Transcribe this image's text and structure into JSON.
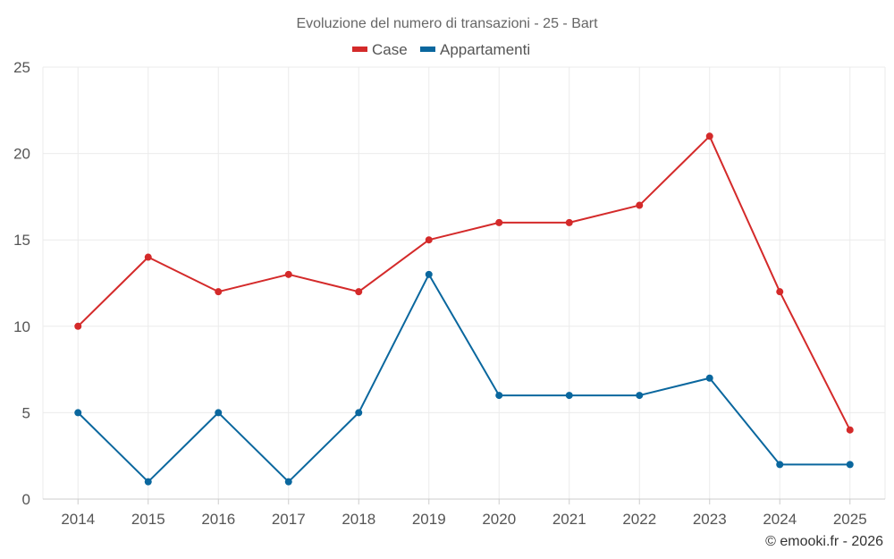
{
  "chart_data": {
    "type": "line",
    "title": "Evoluzione del numero di transazioni - 25 - Bart",
    "categories": [
      "2014",
      "2015",
      "2016",
      "2017",
      "2018",
      "2019",
      "2020",
      "2021",
      "2022",
      "2023",
      "2024",
      "2025"
    ],
    "series": [
      {
        "name": "Case",
        "color": "#d42a2a",
        "values": [
          10,
          14,
          12,
          13,
          12,
          15,
          16,
          16,
          17,
          21,
          12,
          4
        ]
      },
      {
        "name": "Appartamenti",
        "color": "#0a679e",
        "values": [
          5,
          1,
          5,
          1,
          5,
          13,
          6,
          6,
          6,
          7,
          2,
          2
        ]
      }
    ],
    "ylim": [
      0,
      25
    ],
    "yticks": [
      0,
      5,
      10,
      15,
      20,
      25
    ],
    "xlabel": "",
    "ylabel": "",
    "grid": true,
    "legend_position": "top-center"
  },
  "credit": "© emooki.fr - 2026"
}
